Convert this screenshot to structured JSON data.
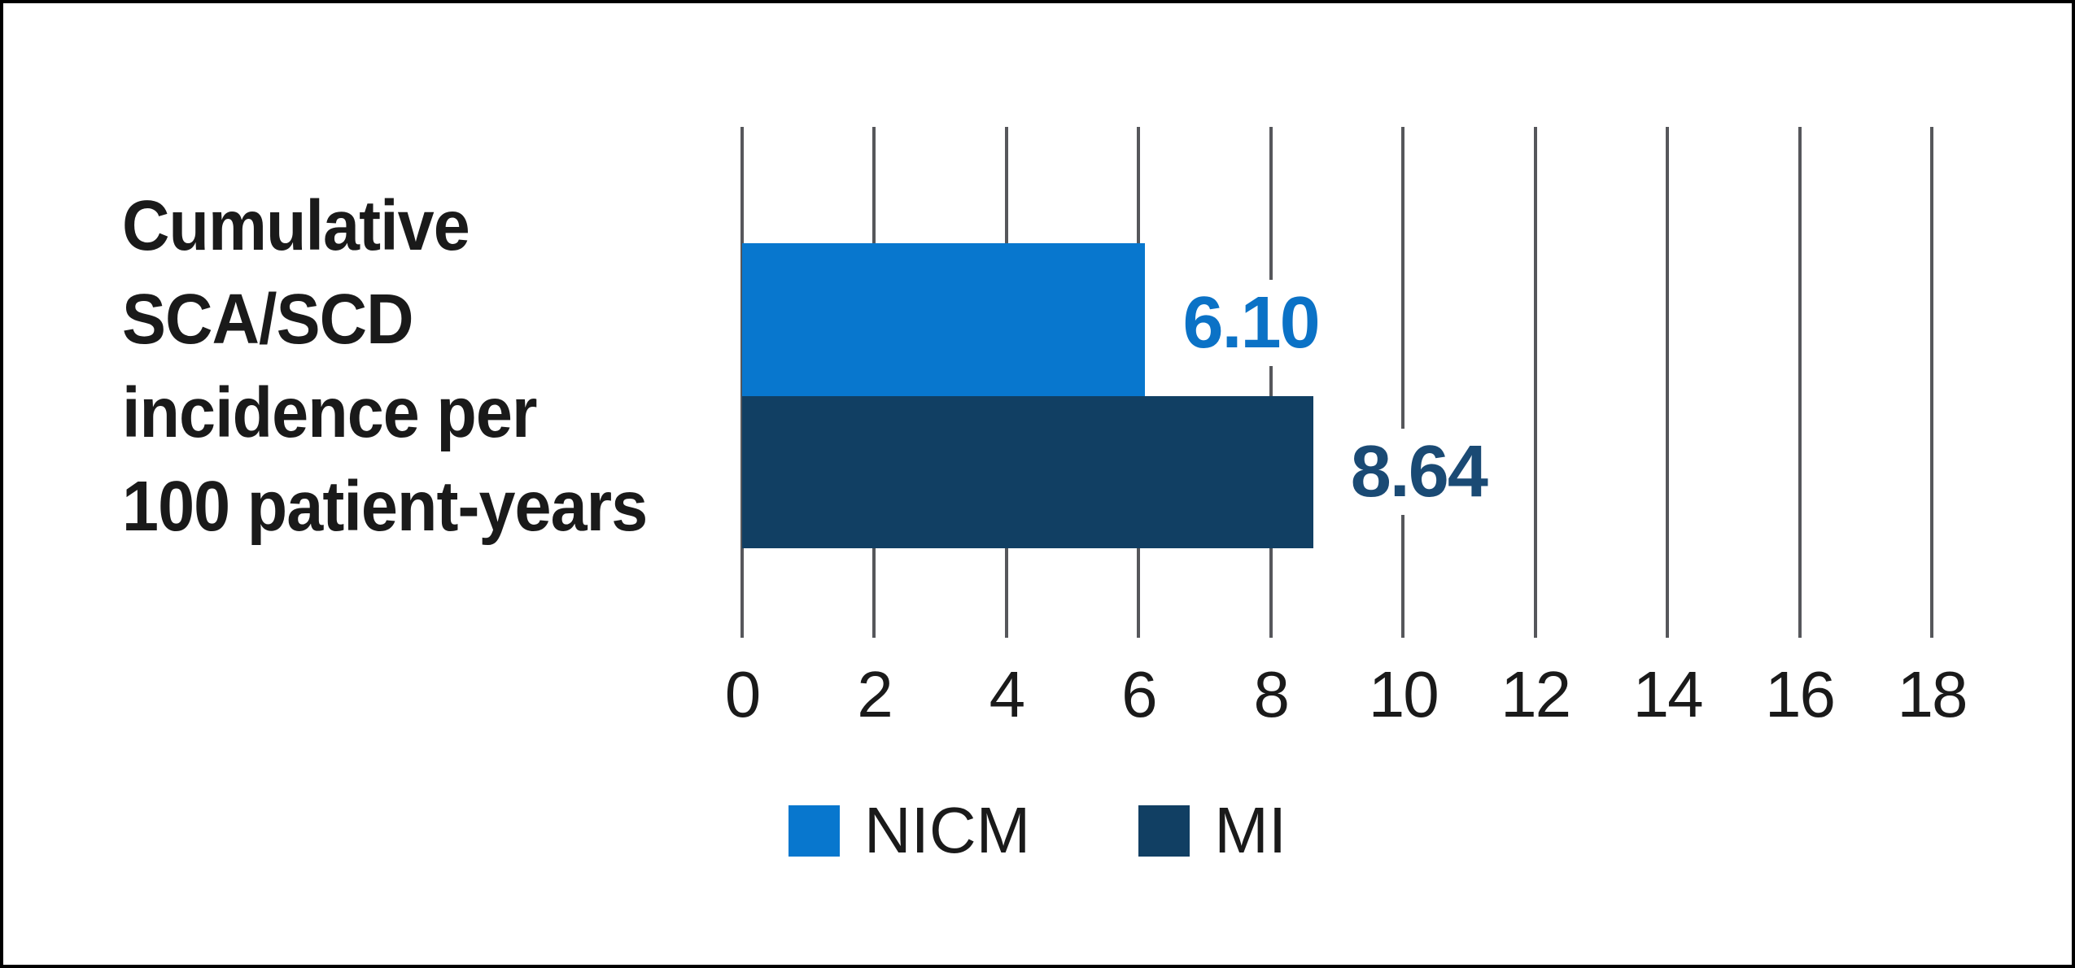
{
  "title": "Cumulative\nSCA/SCD\nincidence per\n100 patient-years",
  "chart_data": {
    "type": "bar",
    "orientation": "horizontal",
    "title": "Cumulative SCA/SCD incidence per 100 patient-years",
    "categories": [
      "NICM",
      "MI"
    ],
    "series": [
      {
        "name": "NICM",
        "value": 6.1,
        "label": "6.10",
        "color": "#0877CE",
        "label_color": "#0B72C6"
      },
      {
        "name": "MI",
        "value": 8.64,
        "label": "8.64",
        "color": "#113F63",
        "label_color": "#1A4A74"
      }
    ],
    "xlabel": "",
    "ylabel": "",
    "xlim": [
      0,
      18
    ],
    "xticks": [
      0,
      2,
      4,
      6,
      8,
      10,
      12,
      14,
      16,
      18
    ],
    "grid": "vertical-gridlines-on",
    "legend_position": "bottom-center"
  },
  "colors": {
    "background": "#FFFFFF",
    "border": "#000000",
    "text": "#1A1A1A",
    "gridline": "#56575B",
    "nicm": "#0877CE",
    "mi": "#113F63"
  }
}
